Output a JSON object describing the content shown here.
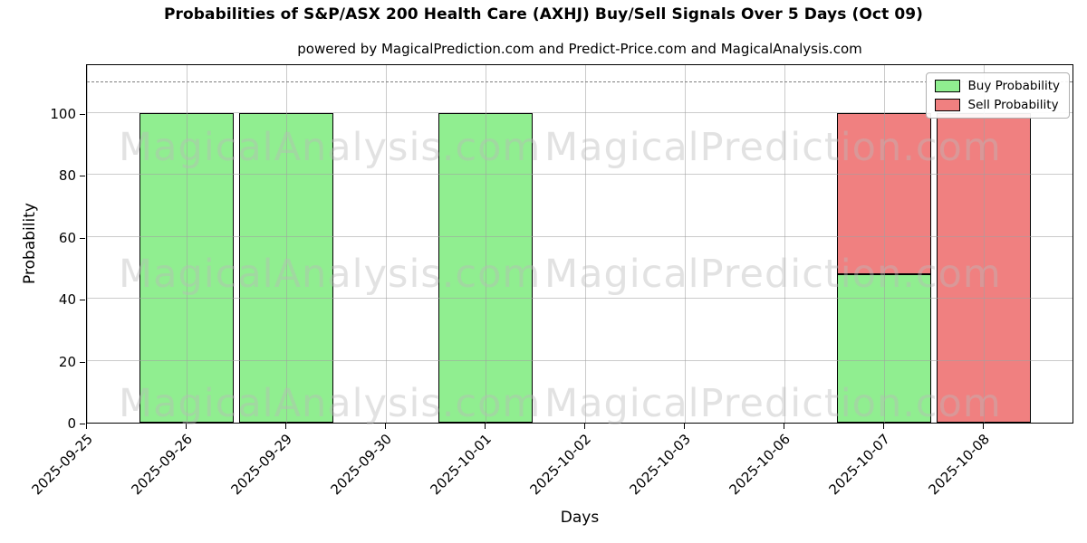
{
  "title": "Probabilities of S&P/ASX 200 Health Care (AXHJ) Buy/Sell Signals Over 5 Days (Oct 09)",
  "subtitle": "powered by MagicalPrediction.com and Predict-Price.com and MagicalAnalysis.com",
  "watermarks": [
    "MagicalAnalysis.com",
    "MagicalPrediction.com"
  ],
  "chart_data": {
    "type": "bar",
    "stacked": true,
    "title": "Probabilities of S&P/ASX 200 Health Care (AXHJ) Buy/Sell Signals Over 5 Days (Oct 09)",
    "subtitle": "powered by MagicalPrediction.com and Predict-Price.com and MagicalAnalysis.com",
    "categories": [
      "2025-09-25",
      "2025-09-26",
      "2025-09-29",
      "2025-09-30",
      "2025-10-01",
      "2025-10-02",
      "2025-10-03",
      "2025-10-06",
      "2025-10-07",
      "2025-10-08"
    ],
    "series": [
      {
        "name": "Buy Probability",
        "color": "#90EE90",
        "values": [
          0,
          100,
          100,
          0,
          100,
          0,
          0,
          0,
          48,
          0
        ]
      },
      {
        "name": "Sell Probability",
        "color": "#F08080",
        "values": [
          0,
          0,
          0,
          0,
          0,
          0,
          0,
          0,
          52,
          100
        ]
      }
    ],
    "xlabel": "Days",
    "ylabel": "Probability",
    "yticks": [
      0,
      20,
      40,
      60,
      80,
      100
    ],
    "ylim": [
      0,
      116
    ],
    "dashed_line_y": 110,
    "grid": true,
    "legend_position": "upper right",
    "bar_edge_color": "#000000",
    "grid_color": "#a0a0a0",
    "dashed_line_color": "#7f7f7f",
    "watermark_color": "#b9b9b9"
  }
}
